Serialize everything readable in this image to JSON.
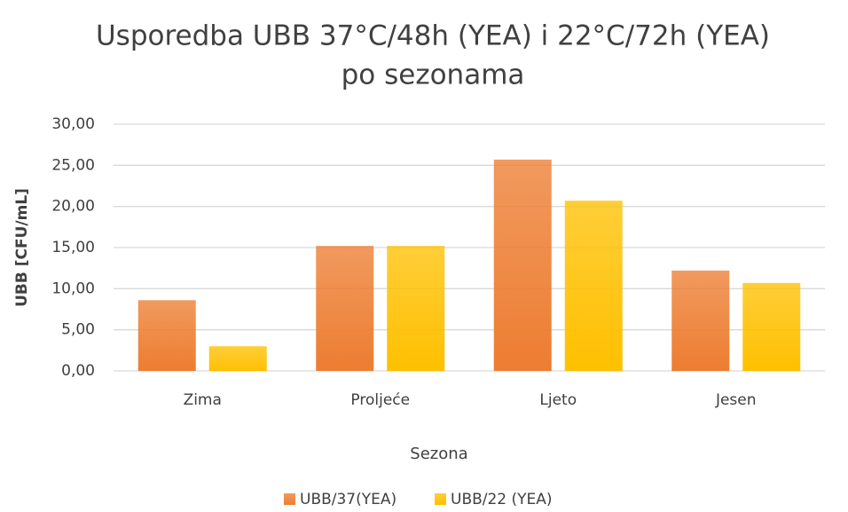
{
  "chart_data": {
    "type": "bar",
    "title": [
      "Usporedba UBB 37°C/48h (YEA) i 22°C/72h (YEA)",
      "po sezonama"
    ],
    "x_label": "Sezona",
    "y_label": "UBB [CFU/mL]",
    "categories": [
      "Zima",
      "Proljeće",
      "Ljeto",
      "Jesen"
    ],
    "series": [
      {
        "name": "UBB/37(YEA)",
        "color": "#ed7d31",
        "values": [
          8.6,
          15.2,
          25.7,
          12.2
        ]
      },
      {
        "name": "UBB/22 (YEA)",
        "color": "#ffc000",
        "values": [
          3.0,
          15.2,
          20.7,
          10.7
        ]
      }
    ],
    "ylim": [
      0,
      30
    ],
    "yticks": [
      {
        "value": 0,
        "label": "0,00"
      },
      {
        "value": 5,
        "label": "5,00"
      },
      {
        "value": 10,
        "label": "10,00"
      },
      {
        "value": 15,
        "label": "15,00"
      },
      {
        "value": 20,
        "label": "20,00"
      },
      {
        "value": 25,
        "label": "25,00"
      },
      {
        "value": 30,
        "label": "30,00"
      }
    ],
    "grid": true,
    "legend": "bottom"
  }
}
